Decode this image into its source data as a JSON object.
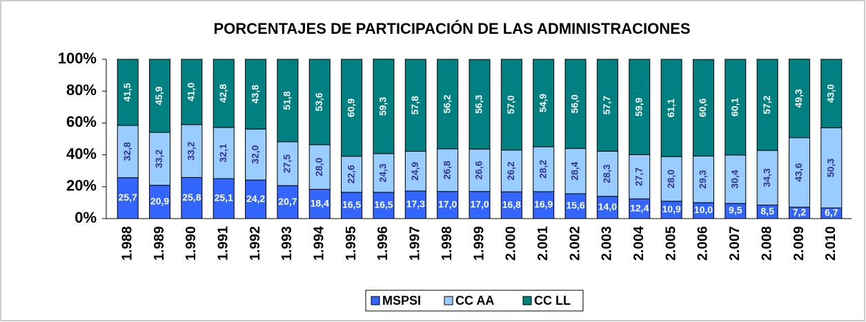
{
  "chart_data": {
    "type": "stacked_bar",
    "title": "PORCENTAJES DE PARTICIPACIÓN DE LAS ADMINISTRACIONES",
    "categories": [
      "1.988",
      "1.989",
      "1.990",
      "1.991",
      "1.992",
      "1.993",
      "1.994",
      "1.995",
      "1.996",
      "1.997",
      "1.998",
      "1.999",
      "2.000",
      "2.001",
      "2.002",
      "2.003",
      "2.004",
      "2.005",
      "2.006",
      "2.007",
      "2.008",
      "2.009",
      "2.010"
    ],
    "series": [
      {
        "name": "MSPSI",
        "color": "#3366ff",
        "values": [
          25.7,
          20.9,
          25.8,
          25.1,
          24.2,
          20.7,
          18.4,
          16.5,
          16.5,
          17.3,
          17.0,
          17.0,
          16.8,
          16.9,
          15.6,
          14.0,
          12.4,
          10.9,
          10.0,
          9.5,
          8.5,
          7.2,
          6.7
        ],
        "value_labels": [
          "25,7",
          "20,9",
          "25,8",
          "25,1",
          "24,2",
          "20,7",
          "18,4",
          "16,5",
          "16,5",
          "17,3",
          "17,0",
          "17,0",
          "16,8",
          "16,9",
          "15,6",
          "14,0",
          "12,4",
          "10,9",
          "10,0",
          "9,5",
          "8,5",
          "7,2",
          "6,7"
        ]
      },
      {
        "name": "CC AA",
        "color": "#99ccff",
        "values": [
          32.8,
          33.2,
          33.2,
          32.1,
          32.0,
          27.5,
          28.0,
          22.6,
          24.3,
          24.9,
          26.8,
          26.6,
          26.2,
          28.2,
          28.4,
          28.3,
          27.7,
          28.0,
          29.3,
          30.4,
          34.3,
          43.6,
          50.3
        ],
        "value_labels": [
          "32,8",
          "33,2",
          "33,2",
          "32,1",
          "32,0",
          "27,5",
          "28,0",
          "22,6",
          "24,3",
          "24,9",
          "26,8",
          "26,6",
          "26,2",
          "28,2",
          "28,4",
          "28,3",
          "27,7",
          "28,0",
          "29,3",
          "30,4",
          "34,3",
          "43,6",
          "50,3"
        ]
      },
      {
        "name": "CC LL",
        "color": "#008080",
        "values": [
          41.5,
          45.9,
          41.0,
          42.8,
          43.8,
          51.8,
          53.6,
          60.9,
          59.3,
          57.8,
          56.2,
          56.3,
          57.0,
          54.9,
          56.0,
          57.7,
          59.9,
          61.1,
          60.6,
          60.1,
          57.2,
          49.3,
          43.0
        ],
        "value_labels": [
          "41,5",
          "45,9",
          "41,0",
          "42,8",
          "43,8",
          "51,8",
          "53,6",
          "60,9",
          "59,3",
          "57,8",
          "56,2",
          "56,3",
          "57,0",
          "54,9",
          "56,0",
          "57,7",
          "59,9",
          "61,1",
          "60,6",
          "60,1",
          "57,2",
          "49,3",
          "43,0"
        ]
      }
    ],
    "ylim": [
      0,
      100
    ],
    "yticks": [
      {
        "value": 0,
        "label": "0%"
      },
      {
        "value": 20,
        "label": "20%"
      },
      {
        "value": 40,
        "label": "40%"
      },
      {
        "value": 60,
        "label": "60%"
      },
      {
        "value": 80,
        "label": "80%"
      },
      {
        "value": 100,
        "label": "100%"
      }
    ],
    "legend": "bottom"
  }
}
